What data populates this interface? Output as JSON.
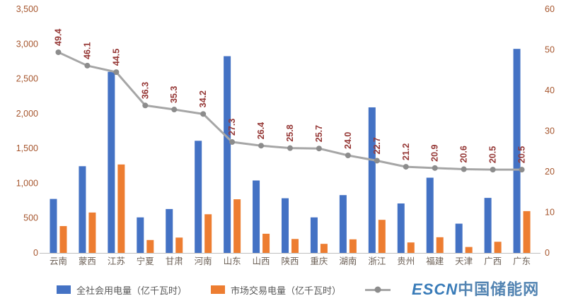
{
  "watermark": {
    "prefix": "ESCN",
    "suffix": "中国储能网",
    "color": "#2E74B5"
  },
  "chart_data": {
    "type": "bar",
    "subtype": "bar-line-combo",
    "title": "",
    "xlabel": "",
    "ylabel": "",
    "grid": false,
    "legend_position": "bottom",
    "categories": [
      "云南",
      "蒙西",
      "江苏",
      "宁夏",
      "甘肃",
      "河南",
      "山东",
      "山西",
      "陕西",
      "重庆",
      "湖南",
      "浙江",
      "贵州",
      "福建",
      "天津",
      "广西",
      "广东"
    ],
    "series": [
      {
        "name": "全社会用电量（亿千瓦时）",
        "type": "bar",
        "axis": "left",
        "color": "#4472C4",
        "values": [
          775,
          1245,
          2600,
          510,
          630,
          1610,
          2825,
          1040,
          785,
          510,
          830,
          2090,
          710,
          1080,
          420,
          790,
          2930
        ]
      },
      {
        "name": "市场交易电量（亿千瓦时）",
        "type": "bar",
        "axis": "left",
        "color": "#ED7D31",
        "values": [
          385,
          580,
          1270,
          185,
          220,
          555,
          770,
          275,
          200,
          130,
          195,
          475,
          150,
          225,
          85,
          160,
          600
        ]
      },
      {
        "name": "",
        "type": "line",
        "axis": "right",
        "color": "#A6A6A6",
        "marker_color": "#8C8C8C",
        "values": [
          49.4,
          46.1,
          44.5,
          36.3,
          35.3,
          34.2,
          27.3,
          26.4,
          25.8,
          25.7,
          24.0,
          22.7,
          21.2,
          20.9,
          20.6,
          20.5,
          20.5
        ],
        "labels": [
          "49.4",
          "46.1",
          "44.5",
          "36.3",
          "35.3",
          "34.2",
          "27.3",
          "26.4",
          "25.8",
          "25.7",
          "24.0",
          "22.7",
          "21.2",
          "20.9",
          "20.6",
          "20.5",
          "20.5"
        ]
      }
    ],
    "left_axis": {
      "min": 0,
      "max": 3500,
      "step": 500,
      "tick_labels": [
        "0",
        "500",
        "1,000",
        "1,500",
        "2,000",
        "2,500",
        "3,000",
        "3,500"
      ]
    },
    "right_axis": {
      "min": 0,
      "max": 60,
      "step": 10,
      "tick_labels": [
        "0",
        "10",
        "20",
        "30",
        "40",
        "50",
        "60"
      ]
    }
  },
  "colors": {
    "axis_tick": "#A6562E",
    "data_label": "#953735",
    "category_label": "#6B5F55",
    "axis_line": "#BFBFBF"
  }
}
